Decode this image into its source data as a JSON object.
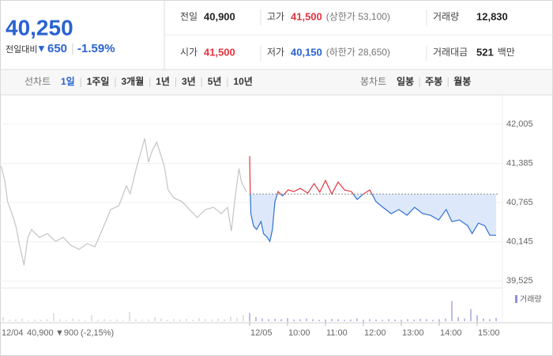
{
  "summary": {
    "price": "40,250",
    "change_label": "전일대비",
    "change_arrow": "▼",
    "change": "650",
    "rate": "-1.59%"
  },
  "stats": [
    [
      {
        "label": "전일",
        "value": "40,900"
      },
      {
        "label": "고가",
        "value": "41,500",
        "note": "(상한가 53,100)"
      },
      {
        "label": "거래량",
        "value": "12,830"
      }
    ],
    [
      {
        "label": "시가",
        "value": "41,500"
      },
      {
        "label": "저가",
        "value": "40,150",
        "note": "(하한가 28,650)"
      },
      {
        "label": "거래대금",
        "value": "521",
        "unit": "백만"
      }
    ]
  ],
  "tabs": {
    "line_chart": {
      "label": "선차트",
      "periods": [
        "1일",
        "1주일",
        "3개월",
        "1년",
        "3년",
        "5년",
        "10년"
      ],
      "selected": 0
    },
    "candle_chart": {
      "label": "봉차트",
      "periods": [
        "일봉",
        "주봉",
        "월봉"
      ]
    }
  },
  "prev_day": {
    "date": "12/04",
    "close": "40,900",
    "change": "▼900",
    "rate": "(-2,15%)"
  },
  "chart_data": {
    "type": "line",
    "xlim": [
      -395,
      405
    ],
    "xticks": [
      {
        "value": 0,
        "label": "12/05"
      },
      {
        "value": 60,
        "label": "10:00"
      },
      {
        "value": 120,
        "label": "11:00"
      },
      {
        "value": 180,
        "label": "12:00"
      },
      {
        "value": 240,
        "label": "13:00"
      },
      {
        "value": 300,
        "label": "14:00"
      },
      {
        "value": 360,
        "label": "15:00"
      }
    ],
    "ylim": [
      39440,
      42405
    ],
    "yticks": [
      {
        "value": 42005,
        "label": "42,005"
      },
      {
        "value": 41385,
        "label": "41,385"
      },
      {
        "value": 40765,
        "label": "40,765"
      },
      {
        "value": 40145,
        "label": "40,145"
      },
      {
        "value": 39525,
        "label": "39,525"
      }
    ],
    "grid": true,
    "reference_line": 40900,
    "reference_color": "#8a8a8a",
    "area_color": "#dde9fb",
    "series": [
      {
        "color": "#c4c4c4",
        "x": [
          -393,
          -387,
          -383,
          -376,
          -370,
          -364,
          -357,
          -351,
          -345,
          -333,
          -320,
          -307,
          -295,
          -283,
          -270,
          -257,
          -245,
          -233,
          -220,
          -207,
          -195,
          -189,
          -180,
          -173,
          -166,
          -160,
          -154,
          -147,
          -141,
          -135,
          -129,
          -120,
          -107,
          -95,
          -83,
          -70,
          -57,
          -45,
          -35,
          -29,
          -23,
          -17,
          -13,
          -5
        ],
        "values": [
          41340,
          41090,
          40780,
          40590,
          40400,
          40090,
          39775,
          40215,
          40340,
          40215,
          40275,
          40150,
          40215,
          40090,
          40025,
          40115,
          40065,
          40340,
          40655,
          40715,
          41030,
          40905,
          41280,
          41530,
          41780,
          41405,
          41590,
          41720,
          41530,
          41340,
          40965,
          40840,
          40780,
          40655,
          40530,
          40655,
          40690,
          40590,
          40690,
          40315,
          40840,
          41305,
          41090,
          40930
        ]
      },
      {
        "color": "#2f6fd1",
        "up_color": "#e3343f",
        "x": [
          0,
          1,
          2,
          6,
          11,
          18,
          22,
          28,
          32,
          36,
          40,
          45,
          52,
          61,
          70,
          80,
          92,
          102,
          111,
          120,
          130,
          140,
          150,
          161,
          170,
          180,
          190,
          200,
          211,
          224,
          236,
          249,
          261,
          274,
          286,
          299,
          311,
          320,
          332,
          345,
          352,
          362,
          372,
          380,
          390
        ],
        "values": [
          41500,
          40900,
          40590,
          40400,
          40340,
          40465,
          40275,
          40215,
          40150,
          40340,
          40780,
          40940,
          40870,
          40965,
          40940,
          40990,
          40915,
          41065,
          40930,
          41115,
          40900,
          41090,
          40965,
          40940,
          40815,
          40900,
          40965,
          40780,
          40690,
          40590,
          40655,
          40565,
          40690,
          40590,
          40565,
          40490,
          40655,
          40465,
          40490,
          40400,
          40275,
          40440,
          40400,
          40250,
          40250
        ]
      }
    ],
    "volume_ylim": [
      0,
      400
    ],
    "volume": [
      {
        "color": "#cfcfcf",
        "x": [
          -390,
          -380,
          -370,
          -360,
          -350,
          -340,
          -330,
          -320,
          -310,
          -300,
          -290,
          -280,
          -270,
          -260,
          -250,
          -240,
          -230,
          -220,
          -210,
          -200,
          -190,
          -180,
          -170,
          -160,
          -150,
          -140,
          -130,
          -120,
          -110,
          -100,
          -90,
          -80,
          -70,
          -60,
          -50,
          -40,
          -30,
          -20,
          -10
        ],
        "values": [
          60,
          20,
          30,
          40,
          15,
          25,
          20,
          30,
          120,
          30,
          20,
          40,
          25,
          15,
          90,
          20,
          30,
          20,
          25,
          15,
          140,
          30,
          20,
          25,
          60,
          40,
          20,
          30,
          25,
          35,
          20,
          45,
          30,
          25,
          40,
          30,
          70,
          50,
          90
        ]
      },
      {
        "name": "거래량",
        "color": "#8f8fd8",
        "x": [
          0,
          10,
          20,
          30,
          40,
          50,
          60,
          70,
          80,
          90,
          100,
          110,
          120,
          130,
          140,
          150,
          160,
          170,
          180,
          190,
          200,
          210,
          220,
          230,
          240,
          250,
          260,
          270,
          280,
          290,
          300,
          310,
          320,
          330,
          340,
          350,
          360,
          370,
          380,
          390
        ],
        "values": [
          120,
          60,
          40,
          30,
          35,
          30,
          45,
          25,
          30,
          40,
          30,
          20,
          25,
          35,
          30,
          20,
          25,
          40,
          20,
          30,
          25,
          20,
          30,
          25,
          20,
          30,
          25,
          35,
          30,
          20,
          30,
          40,
          300,
          60,
          40,
          180,
          90,
          40,
          30,
          50
        ]
      }
    ]
  }
}
